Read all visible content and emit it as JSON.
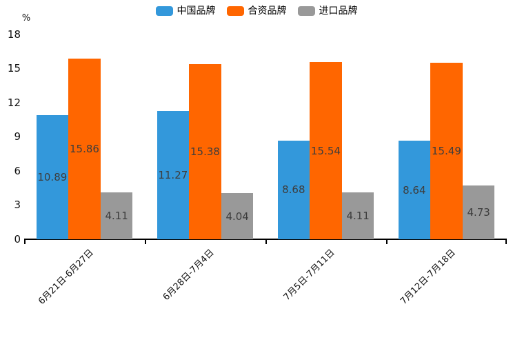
{
  "chart_data": {
    "type": "bar",
    "unit_label": "%",
    "categories": [
      "6月21日-6月27日",
      "6月28日-7月4日",
      "7月5日-7月11日",
      "7月12日-7月18日"
    ],
    "series": [
      {
        "name": "中国品牌",
        "color": "#3398DB",
        "values": [
          10.89,
          11.27,
          8.68,
          8.64
        ]
      },
      {
        "name": "合资品牌",
        "color": "#FF6600",
        "values": [
          15.86,
          15.38,
          15.54,
          15.49
        ]
      },
      {
        "name": "进口品牌",
        "color": "#999999",
        "values": [
          4.11,
          4.04,
          4.11,
          4.73
        ]
      }
    ],
    "ylim": [
      0,
      18
    ],
    "yticks": [
      0,
      3,
      6,
      9,
      12,
      15,
      18
    ],
    "legend_position": "top-center",
    "grid": false,
    "value_labels": "inside-center",
    "value_label_color": "#3d3d3d",
    "axis_color": "#000000",
    "background_color": "#ffffff"
  }
}
